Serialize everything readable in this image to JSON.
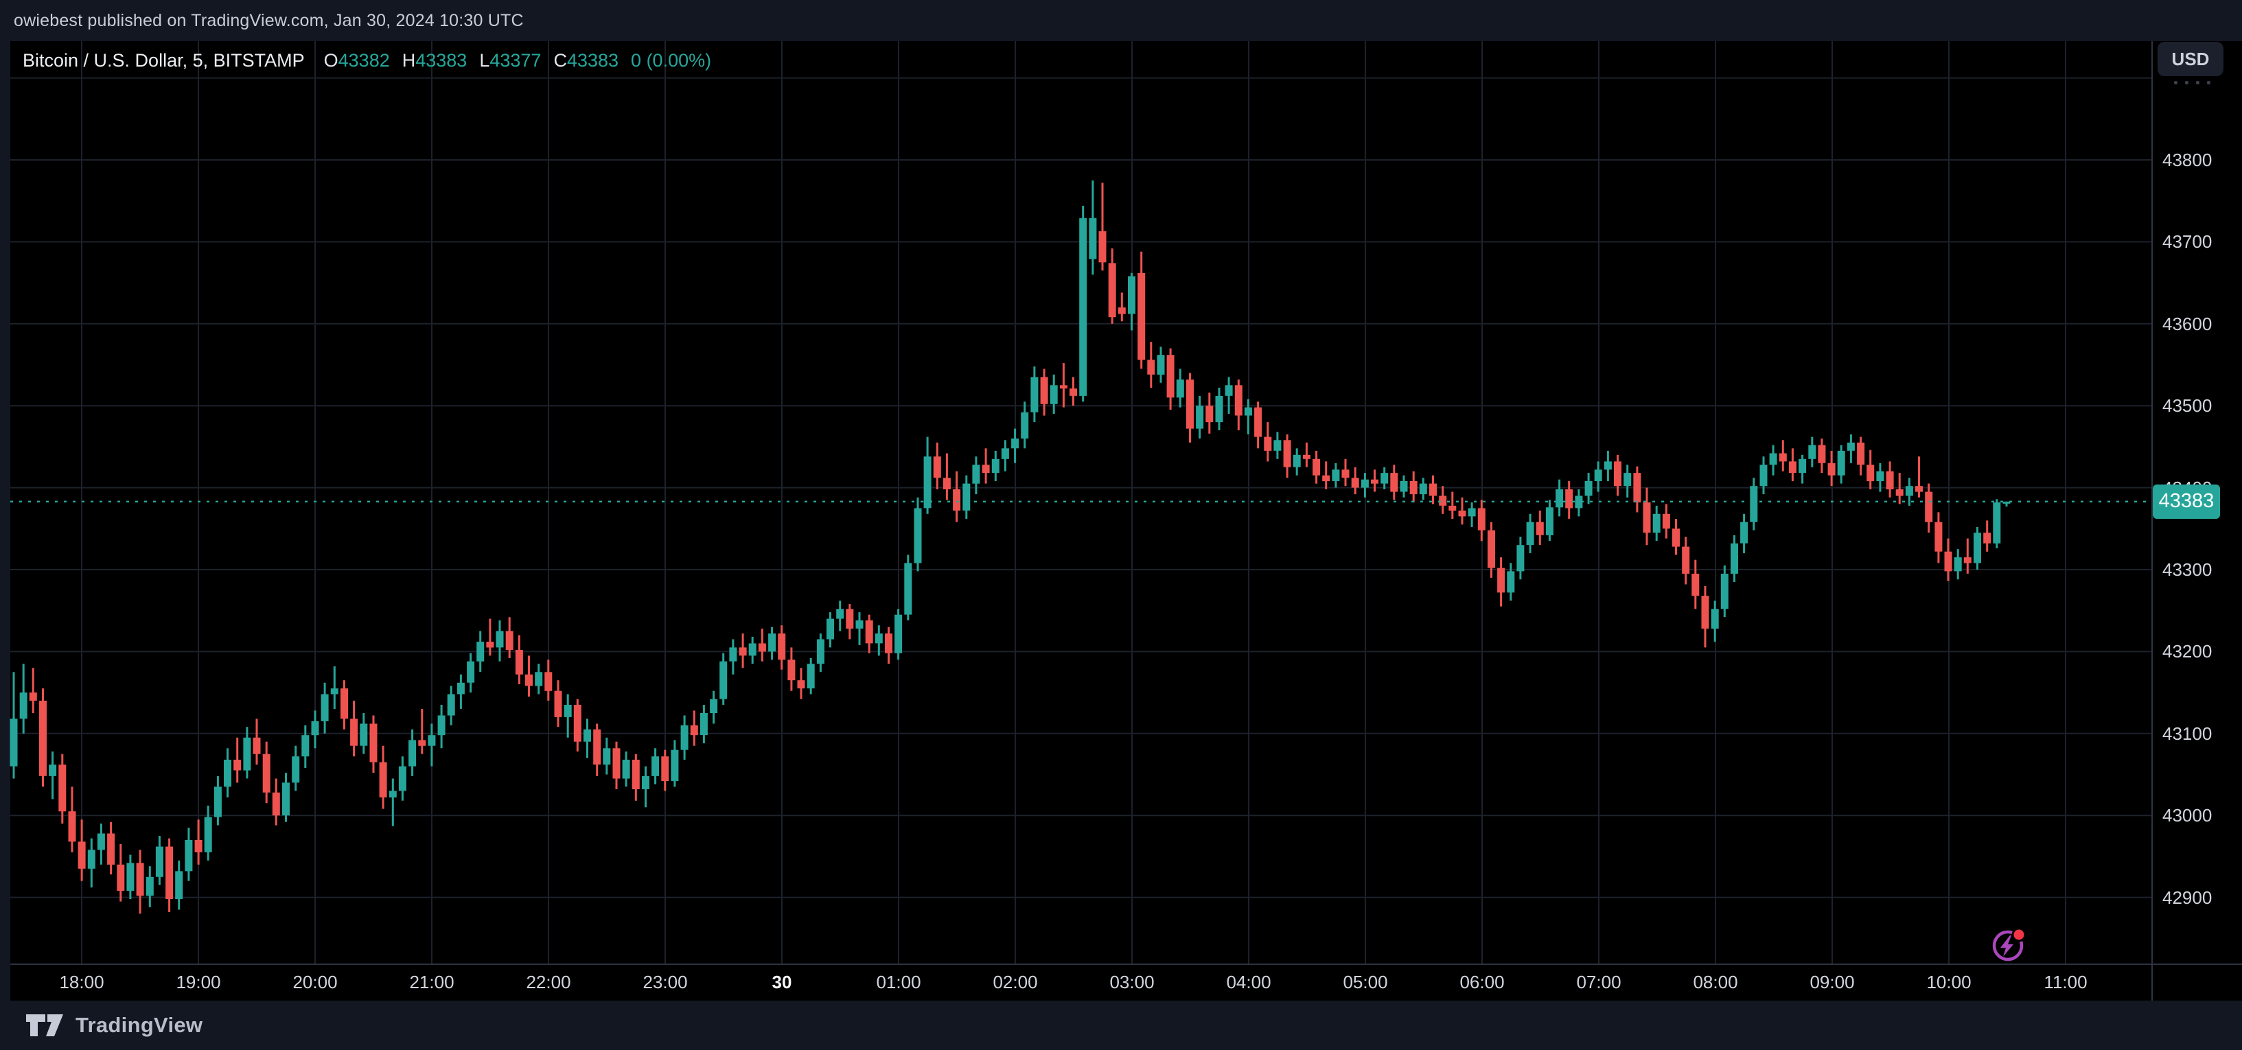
{
  "header": {
    "attribution": "owiebest published on TradingView.com, Jan 30, 2024 10:30 UTC"
  },
  "legend": {
    "symbol": "Bitcoin / U.S. Dollar, 5, BITSTAMP",
    "ohlc": [
      {
        "label": "O",
        "value": "43382"
      },
      {
        "label": "H",
        "value": "43383"
      },
      {
        "label": "L",
        "value": "43377"
      },
      {
        "label": "C",
        "value": "43383"
      }
    ],
    "change": "0 (0.00%)"
  },
  "currency_button": "USD",
  "price_axis": {
    "labels": [
      "43800",
      "43700",
      "43600",
      "43500",
      "43400",
      "43300",
      "43200",
      "43100",
      "43000",
      "42900"
    ],
    "current_price": "43383"
  },
  "time_axis": {
    "labels": [
      {
        "text": "18:00"
      },
      {
        "text": "19:00"
      },
      {
        "text": "20:00"
      },
      {
        "text": "21:00"
      },
      {
        "text": "22:00"
      },
      {
        "text": "23:00"
      },
      {
        "text": "30",
        "bold": true
      },
      {
        "text": "01:00"
      },
      {
        "text": "02:00"
      },
      {
        "text": "03:00"
      },
      {
        "text": "04:00"
      },
      {
        "text": "05:00"
      },
      {
        "text": "06:00"
      },
      {
        "text": "07:00"
      },
      {
        "text": "08:00"
      },
      {
        "text": "09:00"
      },
      {
        "text": "10:00"
      },
      {
        "text": "11:00"
      }
    ]
  },
  "footer": {
    "brand": "TradingView"
  },
  "colors": {
    "page_bg": "#131722",
    "chart_bg": "#000000",
    "grid": "#1d212b",
    "border": "#2f3340",
    "up": "#26a69a",
    "down": "#ef5350",
    "axis_text": "#d2d5dd",
    "price_tag_bg": "#26a69a",
    "icon_purple": "#ab47bc",
    "icon_red": "#f23645"
  },
  "chart_data": {
    "type": "candlestick",
    "title": "Bitcoin / U.S. Dollar",
    "exchange": "BITSTAMP",
    "interval_minutes": 5,
    "date": "Jan 30, 2024",
    "timezone": "UTC",
    "time_start": "17:25",
    "time_end": "10:30",
    "ylim_visible": [
      42820,
      43945
    ],
    "grid": true,
    "current_price": 43383,
    "last_candle_ohlc": {
      "open": 43382,
      "high": 43383,
      "low": 43377,
      "close": 43383,
      "change": "0 (0.00%)"
    },
    "session_high": 43775,
    "session_low": 42880,
    "candles": [
      [
        43060,
        43175,
        43045,
        43118
      ],
      [
        43118,
        43185,
        43100,
        43150
      ],
      [
        43150,
        43180,
        43125,
        43140
      ],
      [
        43140,
        43155,
        43035,
        43048
      ],
      [
        43048,
        43078,
        43020,
        43062
      ],
      [
        43062,
        43075,
        42990,
        43005
      ],
      [
        43005,
        43035,
        42955,
        42968
      ],
      [
        42968,
        42995,
        42920,
        42935
      ],
      [
        42935,
        42972,
        42912,
        42958
      ],
      [
        42958,
        42990,
        42940,
        42978
      ],
      [
        42978,
        42992,
        42928,
        42940
      ],
      [
        42940,
        42965,
        42895,
        42908
      ],
      [
        42908,
        42952,
        42898,
        42942
      ],
      [
        42942,
        42958,
        42880,
        42902
      ],
      [
        42902,
        42938,
        42888,
        42925
      ],
      [
        42925,
        42975,
        42915,
        42962
      ],
      [
        42962,
        42972,
        42882,
        42898
      ],
      [
        42898,
        42945,
        42885,
        42932
      ],
      [
        42932,
        42985,
        42920,
        42970
      ],
      [
        42970,
        42995,
        42940,
        42955
      ],
      [
        42955,
        43012,
        42945,
        42998
      ],
      [
        42998,
        43048,
        42988,
        43035
      ],
      [
        43035,
        43082,
        43022,
        43068
      ],
      [
        43068,
        43095,
        43040,
        43055
      ],
      [
        43055,
        43108,
        43045,
        43095
      ],
      [
        43095,
        43118,
        43062,
        43075
      ],
      [
        43075,
        43090,
        43015,
        43028
      ],
      [
        43028,
        43045,
        42988,
        43000
      ],
      [
        43000,
        43052,
        42992,
        43040
      ],
      [
        43040,
        43085,
        43030,
        43072
      ],
      [
        43072,
        43110,
        43058,
        43098
      ],
      [
        43098,
        43128,
        43082,
        43115
      ],
      [
        43115,
        43162,
        43100,
        43148
      ],
      [
        43148,
        43182,
        43130,
        43155
      ],
      [
        43155,
        43165,
        43105,
        43118
      ],
      [
        43118,
        43140,
        43072,
        43085
      ],
      [
        43085,
        43125,
        43075,
        43112
      ],
      [
        43112,
        43122,
        43052,
        43065
      ],
      [
        43065,
        43085,
        43008,
        43022
      ],
      [
        43022,
        43045,
        42987,
        43030
      ],
      [
        43030,
        43072,
        43018,
        43060
      ],
      [
        43060,
        43105,
        43048,
        43092
      ],
      [
        43092,
        43130,
        43075,
        43085
      ],
      [
        43085,
        43112,
        43060,
        43098
      ],
      [
        43098,
        43135,
        43082,
        43122
      ],
      [
        43122,
        43158,
        43110,
        43148
      ],
      [
        43148,
        43172,
        43130,
        43162
      ],
      [
        43162,
        43198,
        43150,
        43188
      ],
      [
        43188,
        43225,
        43175,
        43212
      ],
      [
        43212,
        43240,
        43195,
        43205
      ],
      [
        43205,
        43238,
        43188,
        43225
      ],
      [
        43225,
        43242,
        43192,
        43202
      ],
      [
        43202,
        43220,
        43160,
        43172
      ],
      [
        43172,
        43195,
        43145,
        43158
      ],
      [
        43158,
        43185,
        43148,
        43175
      ],
      [
        43175,
        43190,
        43140,
        43152
      ],
      [
        43152,
        43165,
        43108,
        43120
      ],
      [
        43120,
        43148,
        43095,
        43135
      ],
      [
        43135,
        43142,
        43078,
        43090
      ],
      [
        43090,
        43118,
        43070,
        43105
      ],
      [
        43105,
        43112,
        43048,
        43062
      ],
      [
        43062,
        43095,
        43050,
        43082
      ],
      [
        43082,
        43090,
        43032,
        43045
      ],
      [
        43045,
        43078,
        43035,
        43068
      ],
      [
        43068,
        43075,
        43018,
        43032
      ],
      [
        43032,
        43060,
        43010,
        43048
      ],
      [
        43048,
        43082,
        43038,
        43072
      ],
      [
        43072,
        43080,
        43030,
        43042
      ],
      [
        43042,
        43092,
        43035,
        43080
      ],
      [
        43080,
        43122,
        43068,
        43110
      ],
      [
        43110,
        43128,
        43085,
        43098
      ],
      [
        43098,
        43135,
        43088,
        43125
      ],
      [
        43125,
        43152,
        43112,
        43142
      ],
      [
        43142,
        43198,
        43135,
        43188
      ],
      [
        43188,
        43215,
        43172,
        43205
      ],
      [
        43205,
        43222,
        43180,
        43195
      ],
      [
        43195,
        43218,
        43185,
        43210
      ],
      [
        43210,
        43228,
        43188,
        43200
      ],
      [
        43200,
        43230,
        43190,
        43222
      ],
      [
        43222,
        43232,
        43178,
        43190
      ],
      [
        43190,
        43205,
        43152,
        43165
      ],
      [
        43165,
        43180,
        43142,
        43155
      ],
      [
        43155,
        43192,
        43148,
        43185
      ],
      [
        43185,
        43222,
        43175,
        43215
      ],
      [
        43215,
        43248,
        43205,
        43240
      ],
      [
        43240,
        43262,
        43225,
        43252
      ],
      [
        43252,
        43258,
        43215,
        43228
      ],
      [
        43228,
        43248,
        43208,
        43238
      ],
      [
        43238,
        43245,
        43198,
        43210
      ],
      [
        43210,
        43232,
        43195,
        43222
      ],
      [
        43222,
        43230,
        43185,
        43198
      ],
      [
        43198,
        43252,
        43190,
        43245
      ],
      [
        43245,
        43318,
        43238,
        43308
      ],
      [
        43308,
        43388,
        43298,
        43375
      ],
      [
        43375,
        43462,
        43368,
        43438
      ],
      [
        43438,
        43455,
        43398,
        43412
      ],
      [
        43412,
        43442,
        43385,
        43398
      ],
      [
        43398,
        43420,
        43358,
        43372
      ],
      [
        43372,
        43415,
        43362,
        43405
      ],
      [
        43405,
        43438,
        43392,
        43428
      ],
      [
        43428,
        43448,
        43405,
        43418
      ],
      [
        43418,
        43445,
        43408,
        43435
      ],
      [
        43435,
        43458,
        43420,
        43448
      ],
      [
        43448,
        43472,
        43430,
        43460
      ],
      [
        43460,
        43505,
        43448,
        43492
      ],
      [
        43492,
        43548,
        43480,
        43535
      ],
      [
        43535,
        43545,
        43488,
        43502
      ],
      [
        43502,
        43538,
        43490,
        43525
      ],
      [
        43525,
        43552,
        43498,
        43521
      ],
      [
        43521,
        43535,
        43500,
        43512
      ],
      [
        43512,
        43744,
        43505,
        43729
      ],
      [
        43679,
        43775,
        43660,
        43729
      ],
      [
        43713,
        43772,
        43665,
        43675
      ],
      [
        43674,
        43692,
        43600,
        43608
      ],
      [
        43620,
        43638,
        43603,
        43612
      ],
      [
        43612,
        43662,
        43592,
        43658
      ],
      [
        43662,
        43688,
        43545,
        43556
      ],
      [
        43556,
        43578,
        43522,
        43538
      ],
      [
        43538,
        43572,
        43528,
        43562
      ],
      [
        43562,
        43570,
        43495,
        43510
      ],
      [
        43510,
        43545,
        43498,
        43532
      ],
      [
        43532,
        43540,
        43455,
        43472
      ],
      [
        43472,
        43512,
        43460,
        43500
      ],
      [
        43500,
        43516,
        43466,
        43480
      ],
      [
        43480,
        43522,
        43470,
        43512
      ],
      [
        43512,
        43535,
        43490,
        43525
      ],
      [
        43525,
        43532,
        43470,
        43488
      ],
      [
        43488,
        43508,
        43465,
        43498
      ],
      [
        43498,
        43505,
        43448,
        43462
      ],
      [
        43462,
        43480,
        43432,
        43445
      ],
      [
        43445,
        43468,
        43435,
        43458
      ],
      [
        43458,
        43465,
        43412,
        43425
      ],
      [
        43425,
        43448,
        43415,
        43440
      ],
      [
        43440,
        43455,
        43425,
        43435
      ],
      [
        43435,
        43445,
        43405,
        43415
      ],
      [
        43415,
        43432,
        43398,
        43408
      ],
      [
        43408,
        43430,
        43400,
        43422
      ],
      [
        43422,
        43435,
        43402,
        43412
      ],
      [
        43412,
        43425,
        43392,
        43400
      ],
      [
        43400,
        43418,
        43388,
        43410
      ],
      [
        43410,
        43422,
        43395,
        43405
      ],
      [
        43405,
        43425,
        43398,
        43418
      ],
      [
        43418,
        43428,
        43385,
        43395
      ],
      [
        43395,
        43415,
        43388,
        43408
      ],
      [
        43408,
        43420,
        43382,
        43392
      ],
      [
        43392,
        43412,
        43385,
        43405
      ],
      [
        43405,
        43415,
        43380,
        43390
      ],
      [
        43390,
        43402,
        43368,
        43378
      ],
      [
        43378,
        43395,
        43362,
        43372
      ],
      [
        43372,
        43388,
        43355,
        43365
      ],
      [
        43365,
        43382,
        43352,
        43375
      ],
      [
        43375,
        43385,
        43335,
        43348
      ],
      [
        43348,
        43358,
        43290,
        43302
      ],
      [
        43302,
        43315,
        43255,
        43272
      ],
      [
        43272,
        43308,
        43262,
        43298
      ],
      [
        43298,
        43340,
        43288,
        43330
      ],
      [
        43330,
        43368,
        43320,
        43358
      ],
      [
        43358,
        43372,
        43330,
        43342
      ],
      [
        43342,
        43385,
        43335,
        43376
      ],
      [
        43376,
        43410,
        43365,
        43398
      ],
      [
        43398,
        43408,
        43362,
        43375
      ],
      [
        43375,
        43398,
        43365,
        43390
      ],
      [
        43390,
        43418,
        43380,
        43408
      ],
      [
        43408,
        43432,
        43395,
        43422
      ],
      [
        43422,
        43445,
        43408,
        43432
      ],
      [
        43432,
        43440,
        43390,
        43402
      ],
      [
        43402,
        43428,
        43388,
        43418
      ],
      [
        43418,
        43426,
        43370,
        43382
      ],
      [
        43382,
        43400,
        43330,
        43345
      ],
      [
        43345,
        43378,
        43335,
        43368
      ],
      [
        43368,
        43380,
        43338,
        43350
      ],
      [
        43350,
        43362,
        43318,
        43328
      ],
      [
        43328,
        43340,
        43282,
        43295
      ],
      [
        43295,
        43312,
        43252,
        43268
      ],
      [
        43268,
        43280,
        43205,
        43228
      ],
      [
        43228,
        43262,
        43212,
        43252
      ],
      [
        43252,
        43305,
        43242,
        43295
      ],
      [
        43295,
        43342,
        43285,
        43332
      ],
      [
        43332,
        43368,
        43320,
        43358
      ],
      [
        43358,
        43412,
        43348,
        43402
      ],
      [
        43402,
        43438,
        43392,
        43428
      ],
      [
        43428,
        43452,
        43415,
        43442
      ],
      [
        43442,
        43458,
        43420,
        43432
      ],
      [
        43432,
        43448,
        43408,
        43418
      ],
      [
        43418,
        43440,
        43405,
        43435
      ],
      [
        43435,
        43462,
        43425,
        43452
      ],
      [
        43452,
        43460,
        43418,
        43430
      ],
      [
        43430,
        43445,
        43402,
        43415
      ],
      [
        43415,
        43452,
        43405,
        43445
      ],
      [
        43445,
        43465,
        43430,
        43455
      ],
      [
        43455,
        43462,
        43415,
        43428
      ],
      [
        43428,
        43446,
        43398,
        43408
      ],
      [
        43408,
        43430,
        43395,
        43420
      ],
      [
        43420,
        43432,
        43388,
        43398
      ],
      [
        43398,
        43418,
        43380,
        43390
      ],
      [
        43390,
        43412,
        43378,
        43402
      ],
      [
        43402,
        43438,
        43388,
        43395
      ],
      [
        43395,
        43405,
        43345,
        43358
      ],
      [
        43358,
        43370,
        43308,
        43322
      ],
      [
        43322,
        43338,
        43286,
        43298
      ],
      [
        43298,
        43325,
        43288,
        43315
      ],
      [
        43315,
        43338,
        43295,
        43308
      ],
      [
        43308,
        43352,
        43300,
        43345
      ],
      [
        43345,
        43360,
        43322,
        43332
      ],
      [
        43332,
        43386,
        43326,
        43382
      ],
      [
        43382,
        43383,
        43377,
        43383
      ]
    ]
  }
}
